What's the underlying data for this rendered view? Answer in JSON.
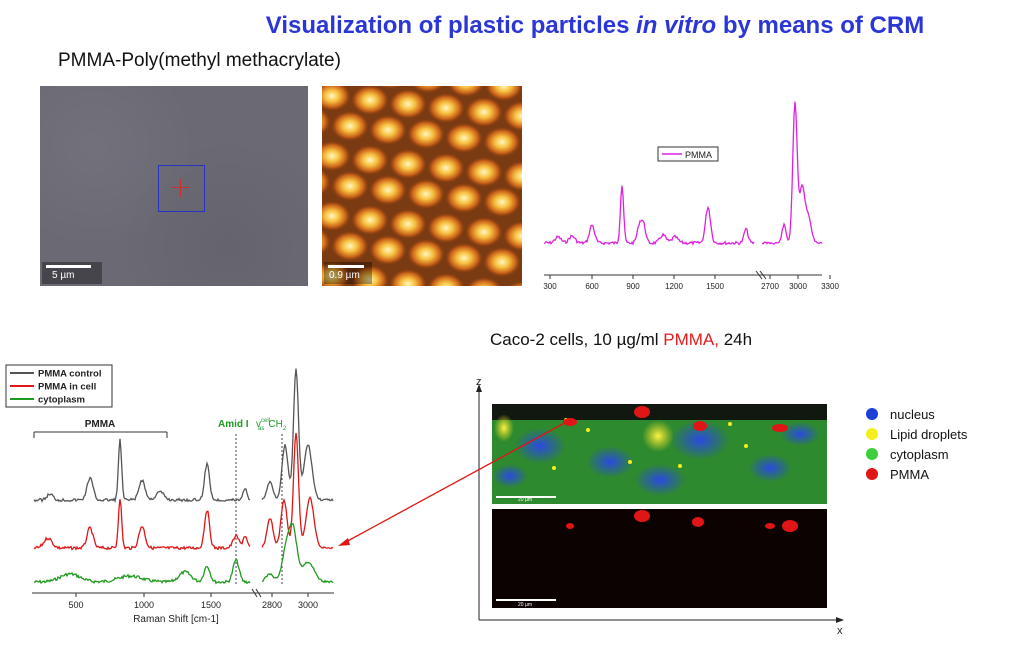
{
  "title": {
    "part1": "Visualization of plastic particles ",
    "part2": "in vitro",
    "part3": " by means of CRM"
  },
  "subtitle": "PMMA-Poly(methyl methacrylate)",
  "micro_image": {
    "scale_label": "5 µm"
  },
  "raman_image": {
    "scale_label": "0.9 µm"
  },
  "top_spectrum": {
    "legend": "PMMA",
    "ticks": [
      "300",
      "600",
      "900",
      "1200",
      "1500",
      "2700",
      "3000",
      "3300"
    ]
  },
  "bottom_spectrum": {
    "legend": [
      "PMMA control",
      "PMMA in cell",
      "cytoplasm"
    ],
    "pmma_bracket_label": "PMMA",
    "amid_label": "Amid I",
    "ch2_label": "v",
    "ch2_sup": "cell",
    "ch2_sub": "as",
    "ch2_tail": "CH",
    "ch2_tail_sub": "2",
    "ticks": [
      "500",
      "1000",
      "1500",
      "2800",
      "3000"
    ],
    "xlabel": "Raman Shift [cm-1]"
  },
  "section2": {
    "prefix": "Caco-2 cells, 10 µg/ml ",
    "highlight": "PMMA,",
    "suffix": " 24h"
  },
  "cells": {
    "z_label": "z",
    "x_label": "x",
    "scale_top": "20 µm",
    "scale_bottom": "20 µm"
  },
  "legend": [
    {
      "label": "nucleus",
      "color": "#1d3fd8"
    },
    {
      "label": "Lipid droplets",
      "color": "#f2ef1c"
    },
    {
      "label": "cytoplasm",
      "color": "#3bd03b"
    },
    {
      "label": "PMMA",
      "color": "#e01515"
    }
  ],
  "colors": {
    "title": "#2b36d6",
    "pmma_top": "#e020e0",
    "control": "#555555",
    "in_cell": "#e01515",
    "cytoplasm": "#1f9a1f"
  }
}
